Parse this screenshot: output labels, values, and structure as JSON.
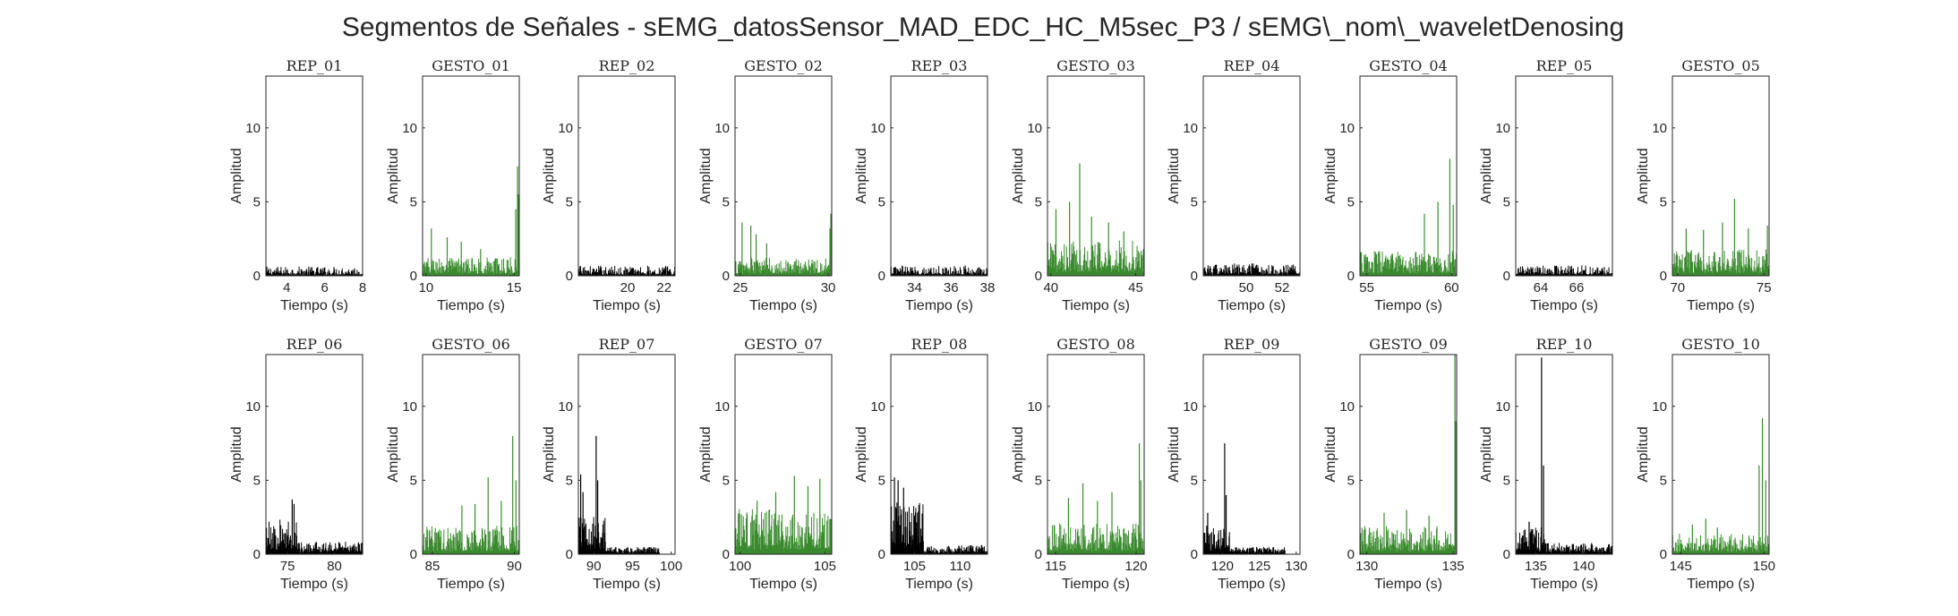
{
  "title": "Segmentos de Señales - sEMG_datosSensor_MAD_EDC_HC_M5sec_P3 / sEMG\\_nom\\_waveletDenosing",
  "colors": {
    "rep": "#000000",
    "gesto": "#3a8a2e",
    "axis": "#262626",
    "background": "#ffffff"
  },
  "chart_data": [
    {
      "type": "bar",
      "title": "REP_01",
      "kind": "rep",
      "xlabel": "Tiempo (s)",
      "ylabel": "Amplitud",
      "xlim": [
        2.9,
        8.0
      ],
      "ylim": [
        0,
        13.5
      ],
      "xticks": [
        4,
        6,
        8
      ],
      "yticks": [
        0,
        5,
        10
      ],
      "n": 150,
      "base": 0.45,
      "spikes": [],
      "bursts": []
    },
    {
      "type": "bar",
      "title": "GESTO_01",
      "kind": "gesto",
      "xlabel": "Tiempo (s)",
      "ylabel": "Amplitud",
      "xlim": [
        9.8,
        15.3
      ],
      "ylim": [
        0,
        13.5
      ],
      "xticks": [
        10,
        15
      ],
      "yticks": [
        0,
        5,
        10
      ],
      "n": 170,
      "base": 0.9,
      "spikes": [
        [
          10.3,
          3.2
        ],
        [
          11.2,
          2.6
        ],
        [
          12.0,
          2.3
        ],
        [
          13.1,
          1.8
        ],
        [
          15.1,
          4.5
        ],
        [
          15.2,
          7.4
        ],
        [
          15.25,
          5.5
        ]
      ],
      "bursts": []
    },
    {
      "type": "bar",
      "title": "REP_02",
      "kind": "rep",
      "xlabel": "Tiempo (s)",
      "ylabel": "Amplitud",
      "xlim": [
        17.3,
        22.6
      ],
      "ylim": [
        0,
        13.5
      ],
      "xticks": [
        20,
        22
      ],
      "yticks": [
        0,
        5,
        10
      ],
      "n": 150,
      "base": 0.5,
      "spikes": [],
      "bursts": []
    },
    {
      "type": "bar",
      "title": "GESTO_02",
      "kind": "gesto",
      "xlabel": "Tiempo (s)",
      "ylabel": "Amplitud",
      "xlim": [
        24.7,
        30.2
      ],
      "ylim": [
        0,
        13.5
      ],
      "xticks": [
        25,
        30
      ],
      "yticks": [
        0,
        5,
        10
      ],
      "n": 170,
      "base": 0.9,
      "spikes": [
        [
          25.1,
          3.6
        ],
        [
          25.6,
          3.4
        ],
        [
          25.9,
          2.8
        ],
        [
          26.5,
          2.2
        ],
        [
          30.1,
          3.2
        ],
        [
          30.15,
          4.2
        ]
      ],
      "bursts": []
    },
    {
      "type": "bar",
      "title": "REP_03",
      "kind": "rep",
      "xlabel": "Tiempo (s)",
      "ylabel": "Amplitud",
      "xlim": [
        32.7,
        38.0
      ],
      "ylim": [
        0,
        13.5
      ],
      "xticks": [
        34,
        36,
        38
      ],
      "yticks": [
        0,
        5,
        10
      ],
      "n": 150,
      "base": 0.5,
      "spikes": [],
      "bursts": []
    },
    {
      "type": "bar",
      "title": "GESTO_03",
      "kind": "gesto",
      "xlabel": "Tiempo (s)",
      "ylabel": "Amplitud",
      "xlim": [
        39.8,
        45.5
      ],
      "ylim": [
        0,
        13.5
      ],
      "xticks": [
        40,
        45
      ],
      "yticks": [
        0,
        5,
        10
      ],
      "n": 170,
      "base": 1.7,
      "spikes": [
        [
          40.3,
          4.5
        ],
        [
          41.1,
          5.0
        ],
        [
          41.7,
          7.6
        ],
        [
          42.4,
          4.0
        ],
        [
          43.4,
          3.6
        ],
        [
          44.3,
          3.0
        ]
      ],
      "bursts": []
    },
    {
      "type": "bar",
      "title": "REP_04",
      "kind": "rep",
      "xlabel": "Tiempo (s)",
      "ylabel": "Amplitud",
      "xlim": [
        47.6,
        53.0
      ],
      "ylim": [
        0,
        13.5
      ],
      "xticks": [
        50,
        52
      ],
      "yticks": [
        0,
        5,
        10
      ],
      "n": 150,
      "base": 0.6,
      "spikes": [],
      "bursts": []
    },
    {
      "type": "bar",
      "title": "GESTO_04",
      "kind": "gesto",
      "xlabel": "Tiempo (s)",
      "ylabel": "Amplitud",
      "xlim": [
        54.6,
        60.3
      ],
      "ylim": [
        0,
        13.5
      ],
      "xticks": [
        55,
        60
      ],
      "yticks": [
        0,
        5,
        10
      ],
      "n": 170,
      "base": 1.2,
      "spikes": [
        [
          58.4,
          4.2
        ],
        [
          59.2,
          5.0
        ],
        [
          59.9,
          7.9
        ],
        [
          60.1,
          4.8
        ]
      ],
      "bursts": []
    },
    {
      "type": "bar",
      "title": "REP_05",
      "kind": "rep",
      "xlabel": "Tiempo (s)",
      "ylabel": "Amplitud",
      "xlim": [
        62.6,
        68.0
      ],
      "ylim": [
        0,
        13.5
      ],
      "xticks": [
        64,
        66
      ],
      "yticks": [
        0,
        5,
        10
      ],
      "n": 150,
      "base": 0.5,
      "spikes": [],
      "bursts": []
    },
    {
      "type": "bar",
      "title": "GESTO_05",
      "kind": "gesto",
      "xlabel": "Tiempo (s)",
      "ylabel": "Amplitud",
      "xlim": [
        69.7,
        75.3
      ],
      "ylim": [
        0,
        13.5
      ],
      "xticks": [
        70,
        75
      ],
      "yticks": [
        0,
        5,
        10
      ],
      "n": 170,
      "base": 1.3,
      "spikes": [
        [
          70.5,
          3.2
        ],
        [
          71.5,
          3.1
        ],
        [
          72.6,
          3.6
        ],
        [
          73.3,
          5.2
        ],
        [
          74.1,
          3.2
        ],
        [
          75.2,
          3.4
        ]
      ],
      "bursts": []
    },
    {
      "type": "bar",
      "title": "REP_06",
      "kind": "rep",
      "xlabel": "Tiempo (s)",
      "ylabel": "Amplitud",
      "xlim": [
        72.7,
        83.0
      ],
      "ylim": [
        0,
        13.5
      ],
      "xticks": [
        75,
        80
      ],
      "yticks": [
        0,
        5,
        10
      ],
      "n": 230,
      "base": 0.6,
      "spikes": [
        [
          75.5,
          3.7
        ],
        [
          75.7,
          3.4
        ]
      ],
      "bursts": [
        [
          72.7,
          76.0,
          1.7
        ]
      ]
    },
    {
      "type": "bar",
      "title": "GESTO_06",
      "kind": "gesto",
      "xlabel": "Tiempo (s)",
      "ylabel": "Amplitud",
      "xlim": [
        84.4,
        90.3
      ],
      "ylim": [
        0,
        13.5
      ],
      "xticks": [
        85,
        90
      ],
      "yticks": [
        0,
        5,
        10
      ],
      "n": 170,
      "base": 1.4,
      "spikes": [
        [
          86.8,
          3.3
        ],
        [
          87.6,
          3.4
        ],
        [
          88.4,
          5.2
        ],
        [
          89.2,
          3.6
        ],
        [
          89.9,
          8.0
        ],
        [
          90.1,
          5.0
        ]
      ],
      "bursts": []
    },
    {
      "type": "bar",
      "title": "REP_07",
      "kind": "rep",
      "xlabel": "Tiempo (s)",
      "ylabel": "Amplitud",
      "xlim": [
        88.0,
        100.5
      ],
      "ylim": [
        0,
        13.5
      ],
      "xticks": [
        90,
        95,
        100
      ],
      "yticks": [
        0,
        5,
        10
      ],
      "n": 230,
      "base": 0.35,
      "xend": 98.5,
      "spikes": [
        [
          88.3,
          5.4
        ],
        [
          88.6,
          4.2
        ],
        [
          90.3,
          8.0
        ],
        [
          90.5,
          5.0
        ]
      ],
      "bursts": [
        [
          88.0,
          91.5,
          1.8
        ]
      ]
    },
    {
      "type": "bar",
      "title": "GESTO_07",
      "kind": "gesto",
      "xlabel": "Tiempo (s)",
      "ylabel": "Amplitud",
      "xlim": [
        99.7,
        105.4
      ],
      "ylim": [
        0,
        13.5
      ],
      "xticks": [
        100,
        105
      ],
      "yticks": [
        0,
        5,
        10
      ],
      "n": 170,
      "base": 2.2,
      "spikes": [
        [
          101.0,
          3.6
        ],
        [
          102.1,
          4.2
        ],
        [
          103.2,
          5.3
        ],
        [
          104.0,
          4.6
        ],
        [
          104.7,
          5.1
        ]
      ],
      "bursts": []
    },
    {
      "type": "bar",
      "title": "REP_08",
      "kind": "rep",
      "xlabel": "Tiempo (s)",
      "ylabel": "Amplitud",
      "xlim": [
        102.4,
        113.0
      ],
      "ylim": [
        0,
        13.5
      ],
      "xticks": [
        105,
        110
      ],
      "yticks": [
        0,
        5,
        10
      ],
      "n": 230,
      "base": 0.45,
      "spikes": [
        [
          102.8,
          5.2
        ],
        [
          103.2,
          5.0
        ],
        [
          103.8,
          4.5
        ]
      ],
      "bursts": [
        [
          102.4,
          106.0,
          2.5
        ]
      ]
    },
    {
      "type": "bar",
      "title": "GESTO_08",
      "kind": "gesto",
      "xlabel": "Tiempo (s)",
      "ylabel": "Amplitud",
      "xlim": [
        114.5,
        120.5
      ],
      "ylim": [
        0,
        13.5
      ],
      "xticks": [
        115,
        120
      ],
      "yticks": [
        0,
        5,
        10
      ],
      "n": 170,
      "base": 1.5,
      "spikes": [
        [
          115.8,
          3.8
        ],
        [
          116.7,
          4.8
        ],
        [
          117.6,
          3.6
        ],
        [
          118.5,
          4.2
        ],
        [
          120.2,
          7.5
        ],
        [
          120.3,
          5.0
        ]
      ],
      "bursts": []
    },
    {
      "type": "bar",
      "title": "REP_09",
      "kind": "rep",
      "xlabel": "Tiempo (s)",
      "ylabel": "Amplitud",
      "xlim": [
        117.4,
        130.5
      ],
      "ylim": [
        0,
        13.5
      ],
      "xticks": [
        120,
        125,
        130
      ],
      "yticks": [
        0,
        5,
        10
      ],
      "n": 230,
      "base": 0.35,
      "xend": 128.5,
      "spikes": [
        [
          118.0,
          2.8
        ],
        [
          120.3,
          7.5
        ],
        [
          120.5,
          4.0
        ]
      ],
      "bursts": [
        [
          117.4,
          121.0,
          1.4
        ]
      ]
    },
    {
      "type": "bar",
      "title": "GESTO_09",
      "kind": "gesto",
      "xlabel": "Tiempo (s)",
      "ylabel": "Amplitud",
      "xlim": [
        129.6,
        135.2
      ],
      "ylim": [
        0,
        13.5
      ],
      "xticks": [
        130,
        135
      ],
      "yticks": [
        0,
        5,
        10
      ],
      "n": 170,
      "base": 1.4,
      "spikes": [
        [
          131.0,
          2.8
        ],
        [
          132.3,
          3.0
        ],
        [
          133.6,
          2.6
        ],
        [
          135.1,
          13.5
        ],
        [
          135.15,
          9.0
        ]
      ],
      "bursts": []
    },
    {
      "type": "bar",
      "title": "REP_10",
      "kind": "rep",
      "xlabel": "Tiempo (s)",
      "ylabel": "Amplitud",
      "xlim": [
        132.9,
        143.0
      ],
      "ylim": [
        0,
        13.5
      ],
      "xticks": [
        135,
        140
      ],
      "yticks": [
        0,
        5,
        10
      ],
      "n": 230,
      "base": 0.55,
      "spikes": [
        [
          134.3,
          2.2
        ],
        [
          135.6,
          13.3
        ],
        [
          135.8,
          6.0
        ]
      ],
      "bursts": [
        [
          132.9,
          136.0,
          1.3
        ]
      ]
    },
    {
      "type": "bar",
      "title": "GESTO_10",
      "kind": "gesto",
      "xlabel": "Tiempo (s)",
      "ylabel": "Amplitud",
      "xlim": [
        144.5,
        150.3
      ],
      "ylim": [
        0,
        13.5
      ],
      "xticks": [
        145,
        150
      ],
      "yticks": [
        0,
        5,
        10
      ],
      "n": 170,
      "base": 1.0,
      "spikes": [
        [
          145.7,
          2.0
        ],
        [
          146.5,
          2.4
        ],
        [
          147.2,
          1.8
        ],
        [
          149.7,
          6.0
        ],
        [
          149.9,
          9.2
        ],
        [
          150.1,
          5.0
        ]
      ],
      "bursts": []
    }
  ]
}
